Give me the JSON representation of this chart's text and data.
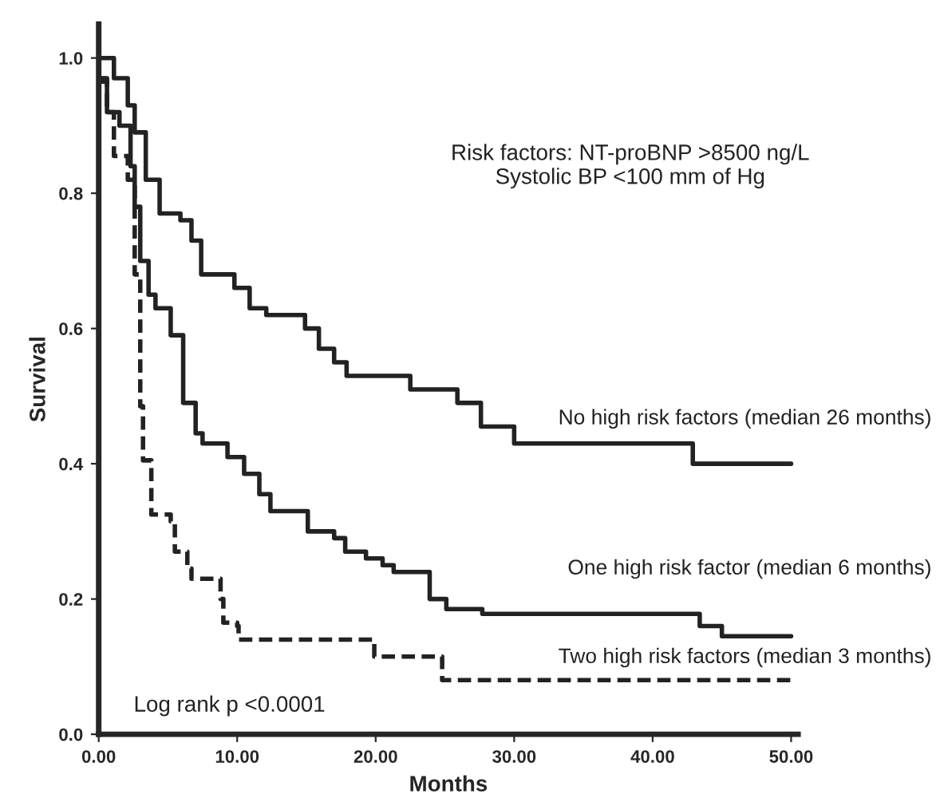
{
  "chart_data": {
    "type": "step",
    "xlabel": "Months",
    "ylabel": "Survival",
    "xlim": [
      0,
      50.5
    ],
    "ylim": [
      0,
      1.05
    ],
    "xticks": [
      {
        "value": 0,
        "label": "0.00"
      },
      {
        "value": 10,
        "label": "10.00"
      },
      {
        "value": 20,
        "label": "20.00"
      },
      {
        "value": 30,
        "label": "30.00"
      },
      {
        "value": 40,
        "label": "40.00"
      },
      {
        "value": 50,
        "label": "50.00"
      }
    ],
    "yticks": [
      {
        "value": 0,
        "label": "0.0"
      },
      {
        "value": 0.2,
        "label": "0.2"
      },
      {
        "value": 0.4,
        "label": "0.4"
      },
      {
        "value": 0.6,
        "label": "0.6"
      },
      {
        "value": 0.8,
        "label": "0.8"
      },
      {
        "value": 1.0,
        "label": "1.0"
      }
    ],
    "grid": false,
    "legend": false,
    "annotations": [
      "Risk factors: NT-proBNP >8500 ng/L\nSystolic BP <100 mm of Hg",
      "Log rank p <0.0001"
    ],
    "series": [
      {
        "name": "No high risk factors (median 26 months)",
        "color": "#222222",
        "line_style": "solid",
        "x": [
          0,
          1.1,
          2.1,
          2.6,
          3.4,
          4.4,
          5.9,
          6.7,
          7.4,
          8.6,
          9.8,
          10.9,
          12.1,
          14.9,
          15.9,
          17.0,
          17.9,
          22.5,
          25.9,
          27.6,
          30.0,
          42.9,
          50.0
        ],
        "values": [
          1.0,
          0.97,
          0.93,
          0.89,
          0.82,
          0.77,
          0.76,
          0.73,
          0.68,
          0.68,
          0.66,
          0.63,
          0.62,
          0.6,
          0.57,
          0.55,
          0.53,
          0.51,
          0.49,
          0.455,
          0.43,
          0.4,
          0.4
        ]
      },
      {
        "name": "One high risk factor (median 6 months)",
        "color": "#222222",
        "line_style": "solid",
        "x": [
          0,
          0.6,
          1.5,
          2.3,
          2.6,
          3.0,
          3.6,
          4.1,
          5.2,
          6.1,
          7.0,
          7.5,
          9.3,
          10.5,
          11.6,
          12.4,
          15.1,
          17.0,
          17.8,
          19.3,
          20.5,
          21.3,
          23.9,
          25.1,
          27.7,
          43.4,
          45.0,
          50.0
        ],
        "values": [
          0.97,
          0.92,
          0.9,
          0.84,
          0.78,
          0.7,
          0.65,
          0.63,
          0.59,
          0.49,
          0.445,
          0.43,
          0.41,
          0.385,
          0.355,
          0.33,
          0.3,
          0.29,
          0.27,
          0.26,
          0.25,
          0.24,
          0.2,
          0.185,
          0.178,
          0.16,
          0.145,
          0.145
        ]
      },
      {
        "name": "Two high risk factors (median 3 months)",
        "color": "#222222",
        "line_style": "dashed",
        "x": [
          0,
          0.6,
          1.1,
          2.1,
          2.6,
          3.0,
          3.2,
          3.8,
          5.2,
          5.5,
          6.4,
          6.7,
          8.8,
          9.0,
          10.0,
          10.1,
          19.9,
          24.8,
          50.0
        ],
        "values": [
          0.965,
          0.92,
          0.855,
          0.82,
          0.68,
          0.485,
          0.405,
          0.325,
          0.315,
          0.27,
          0.245,
          0.23,
          0.2,
          0.165,
          0.16,
          0.14,
          0.115,
          0.08,
          0.08
        ]
      }
    ]
  }
}
